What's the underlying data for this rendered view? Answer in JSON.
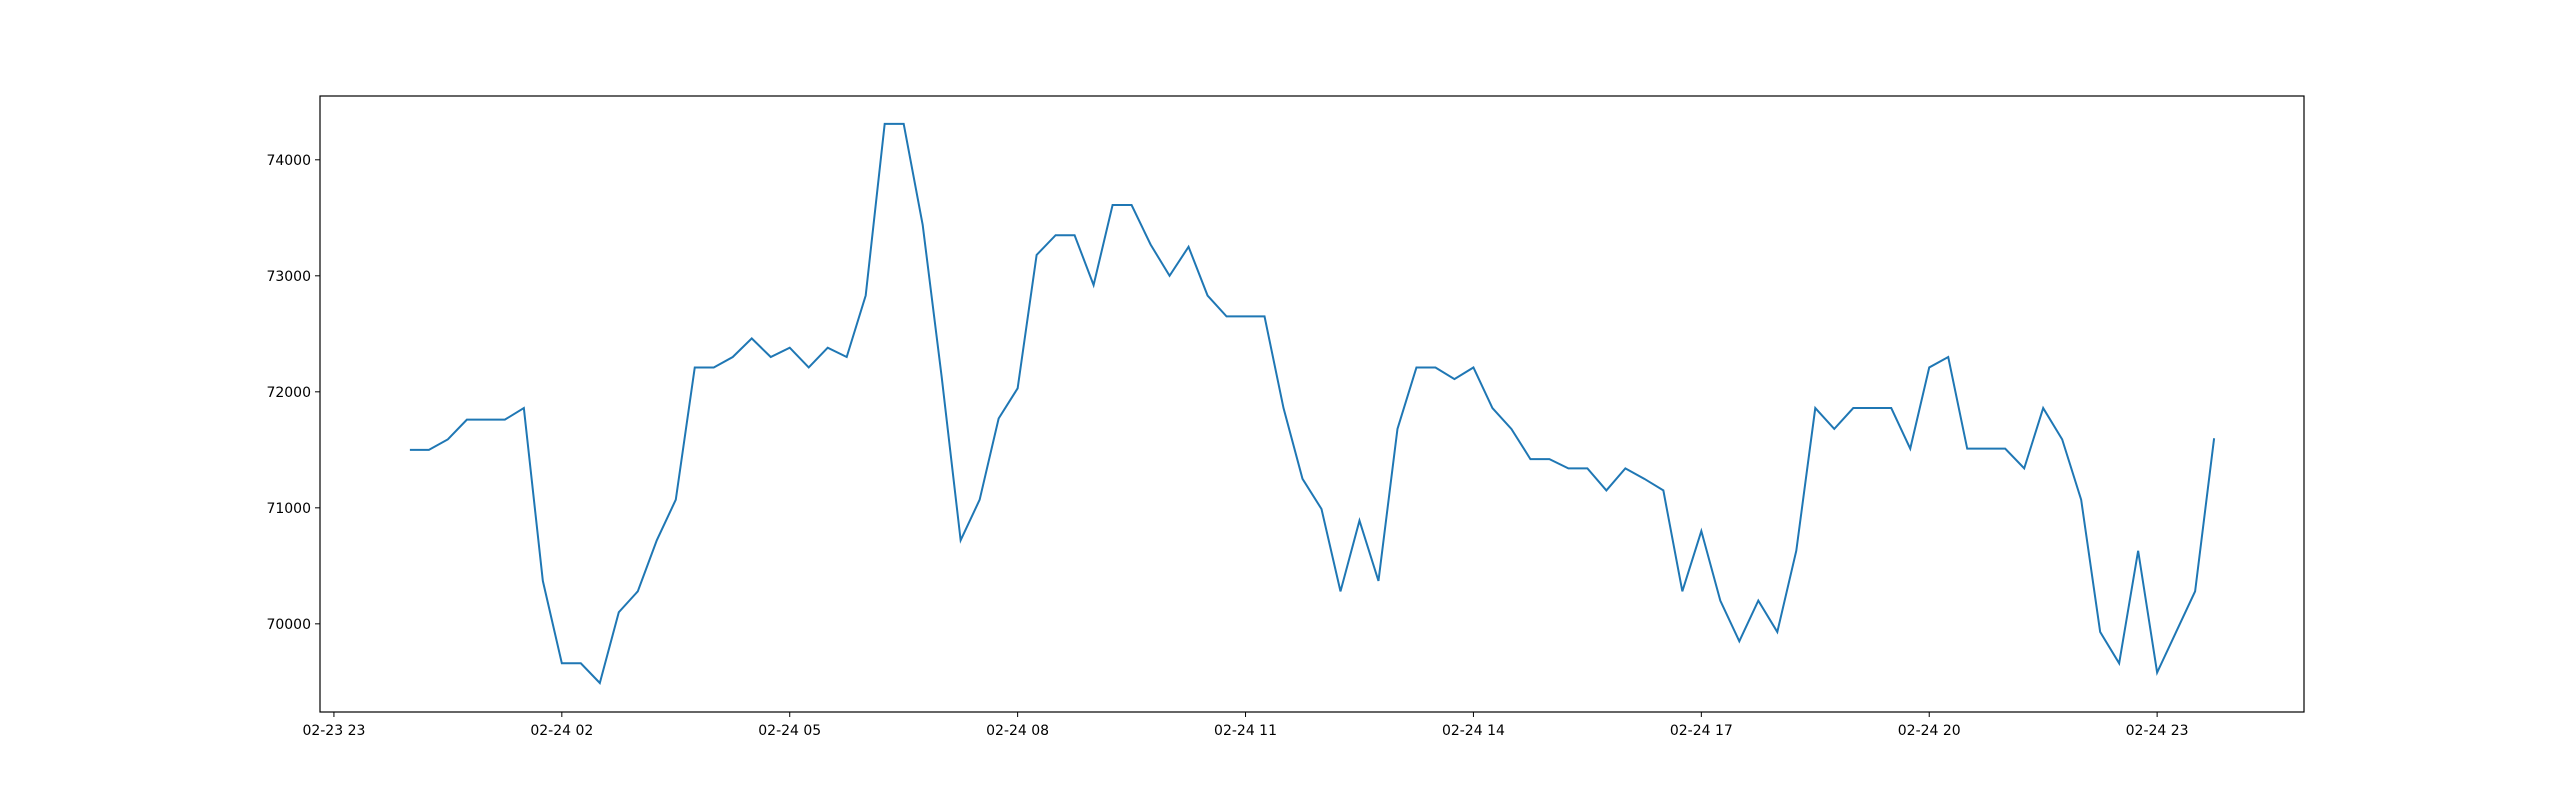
{
  "chart_data": {
    "type": "line",
    "color": "#1f77b4",
    "x": [
      "02-24 00:00",
      "02-24 00:15",
      "02-24 00:30",
      "02-24 00:45",
      "02-24 01:00",
      "02-24 01:15",
      "02-24 01:30",
      "02-24 01:45",
      "02-24 02:00",
      "02-24 02:15",
      "02-24 02:30",
      "02-24 02:45",
      "02-24 03:00",
      "02-24 03:15",
      "02-24 03:30",
      "02-24 03:45",
      "02-24 04:00",
      "02-24 04:15",
      "02-24 04:30",
      "02-24 04:45",
      "02-24 05:00",
      "02-24 05:15",
      "02-24 05:30",
      "02-24 05:45",
      "02-24 06:00",
      "02-24 06:15",
      "02-24 06:30",
      "02-24 06:45",
      "02-24 07:00",
      "02-24 07:15",
      "02-24 07:30",
      "02-24 07:45",
      "02-24 08:00",
      "02-24 08:15",
      "02-24 08:30",
      "02-24 08:45",
      "02-24 09:00",
      "02-24 09:15",
      "02-24 09:30",
      "02-24 09:45",
      "02-24 10:00",
      "02-24 10:15",
      "02-24 10:30",
      "02-24 10:45",
      "02-24 11:00",
      "02-24 11:15",
      "02-24 11:30",
      "02-24 11:45",
      "02-24 12:00",
      "02-24 12:15",
      "02-24 12:30",
      "02-24 12:45",
      "02-24 13:00",
      "02-24 13:15",
      "02-24 13:30",
      "02-24 13:45",
      "02-24 14:00",
      "02-24 14:15",
      "02-24 14:30",
      "02-24 14:45",
      "02-24 15:00",
      "02-24 15:15",
      "02-24 15:30",
      "02-24 15:45",
      "02-24 16:00",
      "02-24 16:15",
      "02-24 16:30",
      "02-24 16:45",
      "02-24 17:00",
      "02-24 17:15",
      "02-24 17:30",
      "02-24 17:45",
      "02-24 18:00",
      "02-24 18:15",
      "02-24 18:30",
      "02-24 18:45",
      "02-24 19:00",
      "02-24 19:15",
      "02-24 19:30",
      "02-24 19:45",
      "02-24 20:00",
      "02-24 20:15",
      "02-24 20:30",
      "02-24 20:45",
      "02-24 21:00",
      "02-24 21:15",
      "02-24 21:30",
      "02-24 21:45",
      "02-24 22:00",
      "02-24 22:15",
      "02-24 22:30",
      "02-24 22:45",
      "02-24 23:00",
      "02-24 23:15",
      "02-24 23:30",
      "02-24 23:45"
    ],
    "values": [
      71500,
      71500,
      71590,
      71760,
      71760,
      71760,
      71860,
      70370,
      69660,
      69660,
      69490,
      70100,
      70280,
      70720,
      71070,
      72210,
      72210,
      72300,
      72460,
      72300,
      72380,
      72210,
      72380,
      72300,
      72830,
      74310,
      74310,
      73440,
      72130,
      70720,
      71070,
      71770,
      72030,
      73180,
      73350,
      73350,
      72920,
      73610,
      73610,
      73270,
      73000,
      73250,
      72830,
      72650,
      72650,
      72650,
      71860,
      71250,
      70990,
      70280,
      70890,
      70370,
      71680,
      72210,
      72210,
      72110,
      72210,
      71860,
      71680,
      71420,
      71420,
      71340,
      71340,
      71150,
      71340,
      71250,
      71150,
      70280,
      70800,
      70200,
      69850,
      70200,
      69930,
      70630,
      71860,
      71680,
      71860,
      71860,
      71860,
      71510,
      72210,
      72300,
      71510,
      71510,
      71510,
      71340,
      71860,
      71590,
      71070,
      69930,
      69660,
      70630,
      69580,
      69930,
      70280,
      71600
    ],
    "xlim": [
      "02-23 22:49",
      "02-25 00:56"
    ],
    "xticks": [
      {
        "value": "02-23 23:00",
        "label": "02-23 23"
      },
      {
        "value": "02-24 02:00",
        "label": "02-24 02"
      },
      {
        "value": "02-24 05:00",
        "label": "02-24 05"
      },
      {
        "value": "02-24 08:00",
        "label": "02-24 08"
      },
      {
        "value": "02-24 11:00",
        "label": "02-24 11"
      },
      {
        "value": "02-24 14:00",
        "label": "02-24 14"
      },
      {
        "value": "02-24 17:00",
        "label": "02-24 17"
      },
      {
        "value": "02-24 20:00",
        "label": "02-24 20"
      },
      {
        "value": "02-24 23:00",
        "label": "02-24 23"
      }
    ],
    "ylim": [
      69240,
      74550
    ],
    "yticks": [
      70000,
      71000,
      72000,
      73000,
      74000
    ],
    "grid": false
  }
}
